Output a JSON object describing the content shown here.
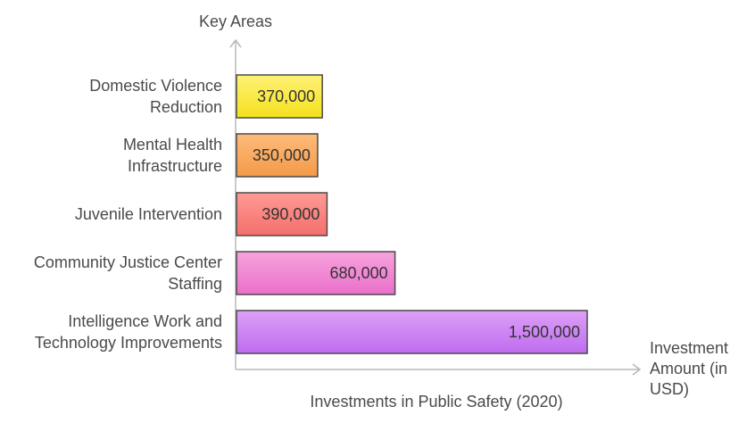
{
  "chart_data": {
    "type": "bar",
    "orientation": "horizontal",
    "title": "Investments in Public Safety (2020)",
    "ylabel": "Key Areas",
    "xlabel": "Investment Amount (in USD)",
    "xlabel_lines": [
      "Investment",
      "Amount (in",
      "USD)"
    ],
    "categories": [
      "Domestic Violence Reduction",
      "Mental Health Infrastructure",
      "Juvenile Intervention",
      "Community Justice Center Staffing",
      "Intelligence Work and Technology Improvements"
    ],
    "category_lines": [
      [
        "Domestic Violence",
        "Reduction"
      ],
      [
        "Mental Health",
        "Infrastructure"
      ],
      [
        "Juvenile Intervention"
      ],
      [
        "Community Justice Center",
        "Staffing"
      ],
      [
        "Intelligence Work and",
        "Technology Improvements"
      ]
    ],
    "values": [
      370000,
      350000,
      390000,
      680000,
      1500000
    ],
    "value_labels": [
      "370,000",
      "350,000",
      "390,000",
      "680,000",
      "1,500,000"
    ],
    "colors": [
      [
        "#fff176",
        "#f5e11c"
      ],
      [
        "#ffbb7a",
        "#f39a48"
      ],
      [
        "#ff9a96",
        "#f46f6b"
      ],
      [
        "#f7a3dc",
        "#ea6fcb"
      ],
      [
        "#dda0f7",
        "#bf6cf0"
      ]
    ],
    "grid": false,
    "legend": "none"
  }
}
